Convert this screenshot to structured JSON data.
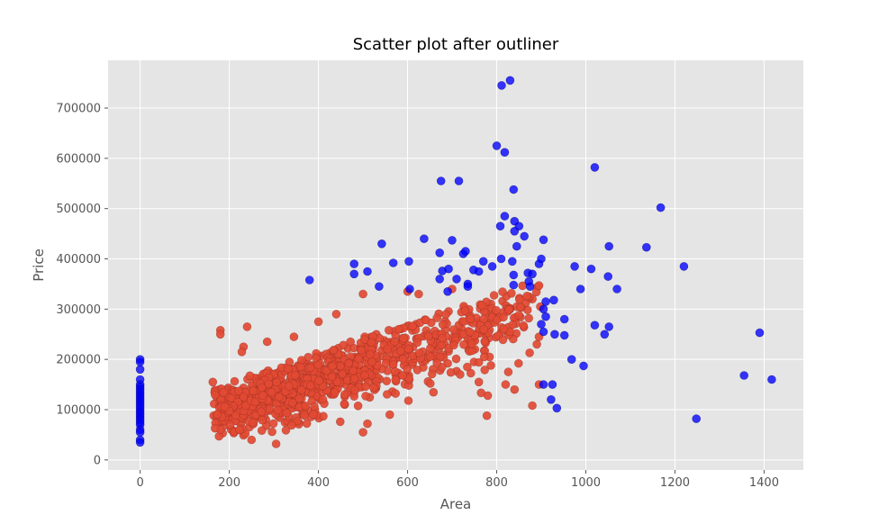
{
  "chart_data": {
    "type": "scatter",
    "title": "Scatter plot after outliner",
    "xlabel": "Area",
    "ylabel": "Price",
    "xlim": [
      -72,
      1488
    ],
    "ylim": [
      -20000,
      795000
    ],
    "x_ticks": [
      0,
      200,
      400,
      600,
      800,
      1000,
      1200,
      1400
    ],
    "y_ticks": [
      0,
      100000,
      200000,
      300000,
      400000,
      500000,
      600000,
      700000
    ],
    "grid": true,
    "legend": "none",
    "colors": {
      "background": "#E5E5E5",
      "grid": "#FFFFFF",
      "kept": "#E24A33",
      "outliers": "#0000FF"
    },
    "series": [
      {
        "role": "outliers",
        "color": "#0000FF",
        "points": [
          [
            0,
            200000
          ],
          [
            0,
            195000
          ],
          [
            0,
            180000
          ],
          [
            0,
            160000
          ],
          [
            0,
            150000
          ],
          [
            0,
            145000
          ],
          [
            0,
            140000
          ],
          [
            0,
            135000
          ],
          [
            0,
            130000
          ],
          [
            0,
            125000
          ],
          [
            0,
            120000
          ],
          [
            0,
            115000
          ],
          [
            0,
            110000
          ],
          [
            0,
            105000
          ],
          [
            0,
            100000
          ],
          [
            0,
            95000
          ],
          [
            0,
            90000
          ],
          [
            0,
            85000
          ],
          [
            0,
            80000
          ],
          [
            0,
            75000
          ],
          [
            0,
            70000
          ],
          [
            0,
            60000
          ],
          [
            0,
            55000
          ],
          [
            0,
            40000
          ],
          [
            0,
            35000
          ],
          [
            811,
            745000
          ],
          [
            830,
            755000
          ],
          [
            800,
            625000
          ],
          [
            818,
            612000
          ],
          [
            675,
            555000
          ],
          [
            715,
            555000
          ],
          [
            838,
            538000
          ],
          [
            1020,
            582000
          ],
          [
            1168,
            502000
          ],
          [
            542,
            430000
          ],
          [
            637,
            440000
          ],
          [
            700,
            437000
          ],
          [
            905,
            438000
          ],
          [
            1052,
            425000
          ],
          [
            1136,
            423000
          ],
          [
            1220,
            385000
          ],
          [
            975,
            385000
          ],
          [
            1012,
            380000
          ],
          [
            1050,
            365000
          ],
          [
            1070,
            340000
          ],
          [
            988,
            340000
          ],
          [
            818,
            485000
          ],
          [
            840,
            475000
          ],
          [
            850,
            465000
          ],
          [
            840,
            455000
          ],
          [
            862,
            445000
          ],
          [
            845,
            425000
          ],
          [
            808,
            465000
          ],
          [
            725,
            410000
          ],
          [
            730,
            415000
          ],
          [
            770,
            395000
          ],
          [
            790,
            385000
          ],
          [
            810,
            400000
          ],
          [
            835,
            395000
          ],
          [
            870,
            372000
          ],
          [
            880,
            370000
          ],
          [
            895,
            390000
          ],
          [
            900,
            400000
          ],
          [
            480,
            390000
          ],
          [
            510,
            375000
          ],
          [
            480,
            370000
          ],
          [
            568,
            392000
          ],
          [
            603,
            395000
          ],
          [
            672,
            412000
          ],
          [
            678,
            376000
          ],
          [
            692,
            380000
          ],
          [
            748,
            378000
          ],
          [
            760,
            375000
          ],
          [
            710,
            360000
          ],
          [
            672,
            360000
          ],
          [
            735,
            350000
          ],
          [
            735,
            345000
          ],
          [
            380,
            358000
          ],
          [
            536,
            345000
          ],
          [
            605,
            340000
          ],
          [
            690,
            335000
          ],
          [
            838,
            368000
          ],
          [
            872,
            355000
          ],
          [
            875,
            345000
          ],
          [
            838,
            348000
          ],
          [
            910,
            315000
          ],
          [
            928,
            318000
          ],
          [
            905,
            300000
          ],
          [
            910,
            285000
          ],
          [
            952,
            280000
          ],
          [
            900,
            270000
          ],
          [
            905,
            255000
          ],
          [
            930,
            250000
          ],
          [
            952,
            248000
          ],
          [
            1020,
            268000
          ],
          [
            1052,
            265000
          ],
          [
            1042,
            250000
          ],
          [
            968,
            200000
          ],
          [
            995,
            187000
          ],
          [
            905,
            150000
          ],
          [
            925,
            150000
          ],
          [
            922,
            120000
          ],
          [
            935,
            103000
          ],
          [
            1355,
            168000
          ],
          [
            1390,
            253000
          ],
          [
            1417,
            160000
          ],
          [
            1248,
            82000
          ]
        ]
      },
      {
        "role": "kept",
        "color": "#E24A33",
        "seed": 11,
        "count": 1000,
        "generated": true,
        "points": [
          [
            163,
            155000
          ],
          [
            165,
            88000
          ],
          [
            180,
            258000
          ],
          [
            180,
            250000
          ],
          [
            178,
            140000
          ],
          [
            180,
            120000
          ],
          [
            185,
            75000
          ],
          [
            195,
            100000
          ],
          [
            215,
            95000
          ],
          [
            240,
            265000
          ],
          [
            232,
            225000
          ],
          [
            228,
            215000
          ],
          [
            245,
            65000
          ],
          [
            250,
            40000
          ],
          [
            285,
            235000
          ],
          [
            305,
            32000
          ],
          [
            345,
            245000
          ],
          [
            400,
            275000
          ],
          [
            440,
            290000
          ],
          [
            500,
            330000
          ],
          [
            600,
            335000
          ],
          [
            625,
            330000
          ],
          [
            700,
            340000
          ],
          [
            778,
            88000
          ],
          [
            820,
            150000
          ],
          [
            840,
            140000
          ],
          [
            880,
            108000
          ],
          [
            895,
            150000
          ],
          [
            890,
            230000
          ],
          [
            895,
            245000
          ],
          [
            880,
            320000
          ],
          [
            845,
            305000
          ],
          [
            780,
            128000
          ],
          [
            760,
            155000
          ],
          [
            500,
            55000
          ],
          [
            510,
            72000
          ],
          [
            560,
            90000
          ]
        ]
      }
    ]
  }
}
